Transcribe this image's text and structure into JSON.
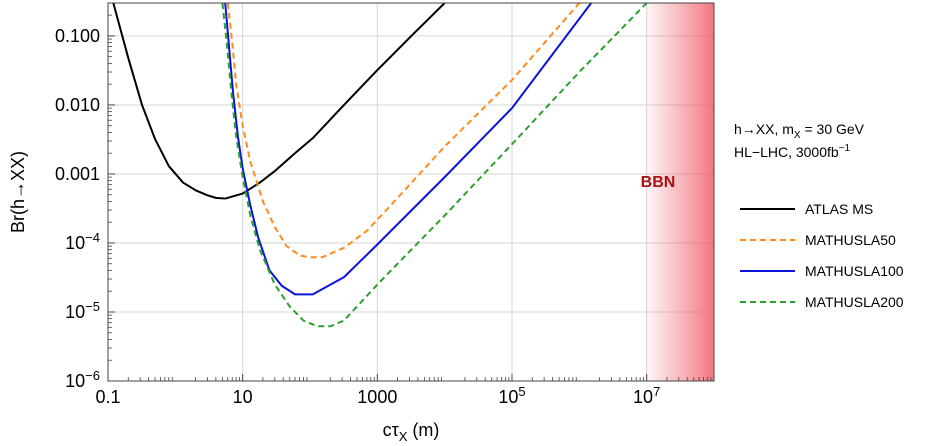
{
  "chart_data": {
    "type": "line",
    "xlabel": "cτ_X (m)",
    "ylabel": "Br(h→XX)",
    "x_scale": "log",
    "y_scale": "log",
    "xlim": [
      0.1,
      100000000
    ],
    "ylim": [
      1e-06,
      0.3
    ],
    "grid": true,
    "legend_position": "right",
    "x_ticks": [
      {
        "value": 0.1,
        "label": "0.1"
      },
      {
        "value": 10,
        "label": "10"
      },
      {
        "value": 1000,
        "label": "1000"
      },
      {
        "value": 100000,
        "label": "10^5"
      },
      {
        "value": 10000000,
        "label": "10^7"
      }
    ],
    "y_ticks": [
      {
        "value": 1e-06,
        "label": "10^-6"
      },
      {
        "value": 1e-05,
        "label": "10^-5"
      },
      {
        "value": 0.0001,
        "label": "10^-4"
      },
      {
        "value": 0.001,
        "label": "0.001"
      },
      {
        "value": 0.01,
        "label": "0.010"
      },
      {
        "value": 0.1,
        "label": "0.100"
      }
    ],
    "annotation": {
      "line1": "h→XX, m_X = 30 GeV",
      "line2": "HL−LHC, 3000fb^−1"
    },
    "shaded_region": {
      "label": "BBN",
      "x_start": 10000000,
      "x_end": 100000000,
      "color": "#ee5560",
      "label_color": "#aa1111"
    },
    "series": [
      {
        "name": "ATLAS MS",
        "color": "#000000",
        "dash": "solid",
        "points": [
          [
            0.12,
            0.3
          ],
          [
            0.2,
            0.048
          ],
          [
            0.32,
            0.01
          ],
          [
            0.5,
            0.0032
          ],
          [
            0.8,
            0.0013
          ],
          [
            1.3,
            0.00075
          ],
          [
            2,
            0.00058
          ],
          [
            3,
            0.00049
          ],
          [
            4,
            0.00045
          ],
          [
            5.5,
            0.00044
          ],
          [
            7,
            0.00047
          ],
          [
            10,
            0.00052
          ],
          [
            18,
            0.00075
          ],
          [
            30,
            0.0011
          ],
          [
            60,
            0.002
          ],
          [
            110,
            0.0033
          ],
          [
            320,
            0.01
          ],
          [
            1000,
            0.032
          ],
          [
            3200,
            0.1
          ],
          [
            10000,
            0.3
          ]
        ]
      },
      {
        "name": "MATHUSLA50",
        "color": "#ff8c1a",
        "dash": "dashed",
        "points": [
          [
            6,
            0.3
          ],
          [
            7,
            0.08
          ],
          [
            8,
            0.02
          ],
          [
            10,
            0.005
          ],
          [
            13,
            0.0015
          ],
          [
            20,
            0.0004
          ],
          [
            30,
            0.00017
          ],
          [
            45,
            9e-05
          ],
          [
            70,
            6.6e-05
          ],
          [
            100,
            6.2e-05
          ],
          [
            150,
            6.2e-05
          ],
          [
            320,
            8.5e-05
          ],
          [
            700,
            0.00015
          ],
          [
            2000,
            0.00045
          ],
          [
            10000,
            0.0025
          ],
          [
            100000,
            0.023
          ],
          [
            1000000,
            0.3
          ]
        ]
      },
      {
        "name": "MATHUSLA100",
        "color": "#0a14dd",
        "dash": "solid",
        "points": [
          [
            5.5,
            0.3
          ],
          [
            6.2,
            0.08
          ],
          [
            7.2,
            0.015
          ],
          [
            8.5,
            0.0035
          ],
          [
            10,
            0.0012
          ],
          [
            13,
            0.00035
          ],
          [
            17,
            0.00012
          ],
          [
            25,
            4e-05
          ],
          [
            38,
            2.4e-05
          ],
          [
            60,
            1.8e-05
          ],
          [
            110,
            1.8e-05
          ],
          [
            320,
            3.2e-05
          ],
          [
            1000,
            9.5e-05
          ],
          [
            10000,
            0.0009
          ],
          [
            100000,
            0.009
          ],
          [
            1500000,
            0.3
          ]
        ]
      },
      {
        "name": "MATHUSLA200",
        "color": "#2ca02c",
        "dash": "dashed",
        "points": [
          [
            5,
            0.3
          ],
          [
            5.8,
            0.08
          ],
          [
            6.8,
            0.015
          ],
          [
            8,
            0.0035
          ],
          [
            10,
            0.0009
          ],
          [
            13,
            0.00025
          ],
          [
            18,
            8e-05
          ],
          [
            30,
            2.5e-05
          ],
          [
            50,
            1.2e-05
          ],
          [
            80,
            7.5e-06
          ],
          [
            130,
            6.2e-06
          ],
          [
            200,
            6.2e-06
          ],
          [
            320,
            7.5e-06
          ],
          [
            1000,
            2.5e-05
          ],
          [
            10000,
            0.00025
          ],
          [
            100000,
            0.0027
          ],
          [
            1000000,
            0.03
          ],
          [
            10000000,
            0.3
          ]
        ]
      }
    ]
  }
}
